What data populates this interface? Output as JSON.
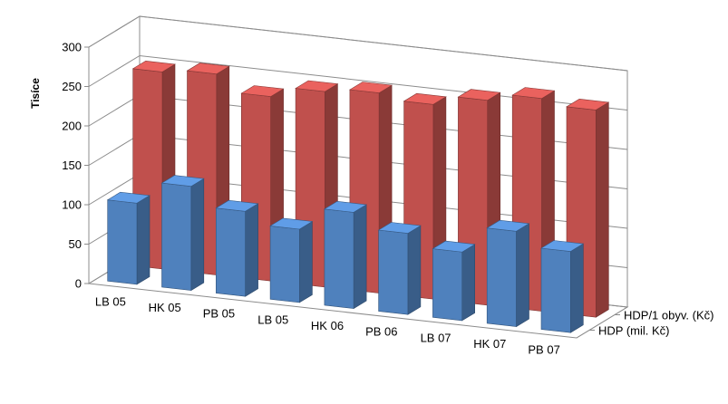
{
  "chart_data": {
    "type": "bar",
    "ylabel": "Tisíce",
    "ylim": [
      0,
      300
    ],
    "yticks": [
      "0",
      "50",
      "100",
      "150",
      "200",
      "250",
      "300"
    ],
    "grid": true,
    "categories": [
      "LB 05",
      "HK 05",
      "PB 05",
      "LB 05",
      "HK 06",
      "PB 06",
      "LB 07",
      "HK 07",
      "PB 07"
    ],
    "series": [
      {
        "name": "HDP (mil. Kč)",
        "color": "#4f81bd",
        "values": [
          103,
          132,
          108,
          93,
          122,
          103,
          87,
          121,
          103
        ]
      },
      {
        "name": "HDP/1 obyv. (Kč)",
        "color": "#c0504d",
        "values": [
          250,
          255,
          234,
          248,
          254,
          247,
          260,
          270,
          263
        ]
      }
    ]
  }
}
